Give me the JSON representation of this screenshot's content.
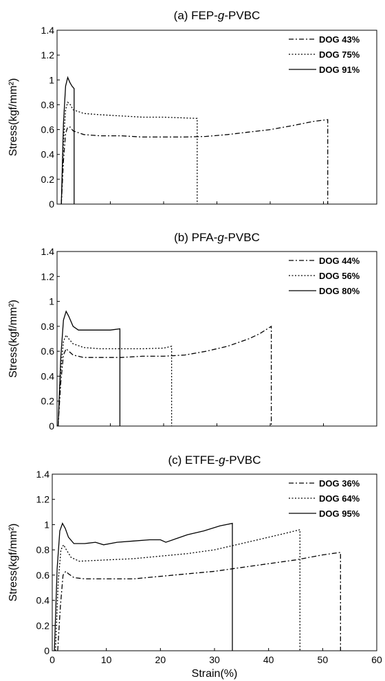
{
  "chart_data": [
    {
      "type": "line",
      "title_prefix": "(a) FEP-",
      "title_italic": "g",
      "title_suffix": "-PVBC",
      "xlabel": "",
      "ylabel": "Stress(kgf/mm²)",
      "xlim": [
        0,
        60
      ],
      "ylim": [
        0,
        1.4
      ],
      "yticks": [
        "0",
        "0.2",
        "0.4",
        "0.6",
        "0.8",
        "1",
        "1.2",
        "1.4"
      ],
      "xticks": [],
      "legend_position": "top-right",
      "series": [
        {
          "name": "DOG 43%",
          "dash": "dashdot",
          "x": [
            0.8,
            1.2,
            1.6,
            2.0,
            2.5,
            3,
            5,
            8,
            12,
            16,
            20,
            24,
            28,
            32,
            36,
            40,
            44,
            48,
            50.8,
            50.8
          ],
          "y": [
            0.0,
            0.35,
            0.57,
            0.62,
            0.62,
            0.59,
            0.56,
            0.55,
            0.55,
            0.54,
            0.54,
            0.54,
            0.545,
            0.56,
            0.58,
            0.6,
            0.63,
            0.665,
            0.68,
            0.0
          ]
        },
        {
          "name": "DOG 75%",
          "dash": "dotted",
          "x": [
            0.8,
            1.2,
            1.6,
            2.0,
            2.5,
            3,
            5,
            8,
            12,
            16,
            20,
            23.2,
            26.3,
            26.3
          ],
          "y": [
            0.0,
            0.5,
            0.76,
            0.82,
            0.8,
            0.76,
            0.73,
            0.72,
            0.71,
            0.7,
            0.7,
            0.695,
            0.69,
            0.0
          ]
        },
        {
          "name": "DOG 91%",
          "dash": "solid",
          "x": [
            0.8,
            1.2,
            1.6,
            2.0,
            2.4,
            2.8,
            3.2,
            3.2
          ],
          "y": [
            0.0,
            0.65,
            0.95,
            1.02,
            0.98,
            0.95,
            0.93,
            0.0
          ]
        }
      ]
    },
    {
      "type": "line",
      "title_prefix": "(b) PFA-",
      "title_italic": "g",
      "title_suffix": "-PVBC",
      "xlabel": "",
      "ylabel": "Stress(kgf/mm²)",
      "xlim": [
        0,
        60
      ],
      "ylim": [
        0,
        1.4
      ],
      "yticks": [
        "0",
        "0.2",
        "0.4",
        "0.6",
        "0.8",
        "1",
        "1.2",
        "1.4"
      ],
      "xticks": [],
      "legend_position": "top-right",
      "series": [
        {
          "name": "DOG 44%",
          "dash": "dashdot",
          "x": [
            0.2,
            0.7,
            1.2,
            1.7,
            2.2,
            3,
            5,
            8,
            12,
            16,
            20,
            24,
            28,
            32,
            36,
            38,
            40.2,
            40.2
          ],
          "y": [
            0.0,
            0.35,
            0.57,
            0.62,
            0.6,
            0.57,
            0.55,
            0.55,
            0.55,
            0.56,
            0.56,
            0.57,
            0.6,
            0.64,
            0.7,
            0.74,
            0.8,
            0.0
          ]
        },
        {
          "name": "DOG 56%",
          "dash": "dotted",
          "x": [
            0.2,
            0.7,
            1.2,
            1.7,
            2.2,
            3,
            5,
            8,
            12,
            16,
            20,
            21.5,
            21.5
          ],
          "y": [
            0.0,
            0.45,
            0.68,
            0.73,
            0.7,
            0.66,
            0.63,
            0.62,
            0.62,
            0.62,
            0.625,
            0.64,
            0.0
          ]
        },
        {
          "name": "DOG 80%",
          "dash": "solid",
          "x": [
            0.2,
            0.7,
            1.2,
            1.7,
            2.2,
            3,
            4,
            6,
            8,
            10,
            11.8,
            11.8
          ],
          "y": [
            0.0,
            0.55,
            0.85,
            0.92,
            0.88,
            0.8,
            0.77,
            0.77,
            0.77,
            0.77,
            0.78,
            0.0
          ]
        }
      ]
    },
    {
      "type": "line",
      "title_prefix": "(c) ETFE-",
      "title_italic": "g",
      "title_suffix": "-PVBC",
      "xlabel": "Strain(%)",
      "ylabel": "Stress(kgf/mm²)",
      "xlim": [
        0,
        60
      ],
      "ylim": [
        0,
        1.4
      ],
      "yticks": [
        "0",
        "0.2",
        "0.4",
        "0.6",
        "0.8",
        "1",
        "1.2",
        "1.4"
      ],
      "xticks": [
        "0",
        "10",
        "20",
        "30",
        "40",
        "50",
        "60"
      ],
      "legend_position": "top-right",
      "series": [
        {
          "name": "DOG 36%",
          "dash": "dashdot",
          "x": [
            1.0,
            1.5,
            2.0,
            2.5,
            3,
            4,
            6,
            10,
            15,
            20,
            25,
            30,
            35,
            40,
            45,
            50,
            53.3,
            53.3
          ],
          "y": [
            0.0,
            0.35,
            0.6,
            0.63,
            0.61,
            0.58,
            0.57,
            0.57,
            0.57,
            0.59,
            0.61,
            0.63,
            0.66,
            0.69,
            0.72,
            0.76,
            0.78,
            0.0
          ]
        },
        {
          "name": "DOG 64%",
          "dash": "dotted",
          "x": [
            0.6,
            1.1,
            1.6,
            2.1,
            2.6,
            3.5,
            5,
            10,
            15,
            20,
            25,
            30,
            35,
            40,
            44,
            45.8,
            45.8
          ],
          "y": [
            0.0,
            0.55,
            0.8,
            0.84,
            0.8,
            0.74,
            0.71,
            0.72,
            0.73,
            0.75,
            0.77,
            0.8,
            0.85,
            0.9,
            0.94,
            0.96,
            0.0
          ]
        },
        {
          "name": "DOG 95%",
          "dash": "solid",
          "x": [
            0.4,
            0.9,
            1.4,
            1.9,
            2.4,
            3,
            4,
            6,
            8,
            9.5,
            12,
            15,
            18,
            20,
            21,
            23,
            25,
            28,
            31,
            33.3,
            33.3
          ],
          "y": [
            0.0,
            0.65,
            0.95,
            1.01,
            0.97,
            0.9,
            0.85,
            0.85,
            0.86,
            0.84,
            0.86,
            0.87,
            0.88,
            0.88,
            0.86,
            0.89,
            0.92,
            0.95,
            0.99,
            1.01,
            0.0
          ]
        }
      ]
    }
  ]
}
